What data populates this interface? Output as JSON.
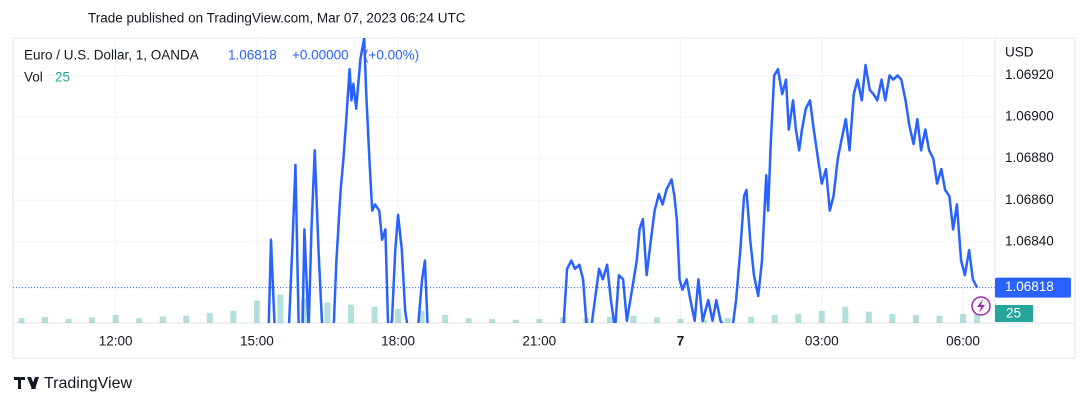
{
  "header": {
    "published": "Trade published on TradingView.com, Mar 07, 2023 06:24 UTC"
  },
  "footer": {
    "brand": "TradingView"
  },
  "chart_data": {
    "type": "line",
    "title": "Euro / U.S. Dollar, 1, OANDA",
    "change": "+0.00000",
    "change_percent": "(+0.00%)",
    "volume_label": "Vol",
    "y_axis_label": "USD",
    "grid": true,
    "xlim": [
      9.82,
      30.68
    ],
    "xticks": [
      {
        "value": 12,
        "label": "12:00"
      },
      {
        "value": 15,
        "label": "15:00"
      },
      {
        "value": 18,
        "label": "18:00"
      },
      {
        "value": 21,
        "label": "21:00"
      },
      {
        "value": 24,
        "label": "7"
      },
      {
        "value": 27,
        "label": "03:00"
      },
      {
        "value": 30,
        "label": "06:00"
      }
    ],
    "ylim": [
      1.06801,
      1.06938
    ],
    "yticks": [
      {
        "value": 1.0684,
        "label": "1.06840"
      },
      {
        "value": 1.0686,
        "label": "1.06860"
      },
      {
        "value": 1.0688,
        "label": "1.06880"
      },
      {
        "value": 1.069,
        "label": "1.06900"
      },
      {
        "value": 1.0692,
        "label": "1.06920"
      }
    ],
    "y2lim": [
      0,
      700
    ],
    "series": [
      {
        "name": "EURUSD",
        "color": "#2962ff",
        "x": [
          15.25,
          15.3,
          15.38,
          15.51,
          15.68,
          15.76,
          15.82,
          15.89,
          15.97,
          16.01,
          16.1,
          16.16,
          16.23,
          16.31,
          16.39,
          16.52,
          16.63,
          16.69,
          16.78,
          16.84,
          16.9,
          16.97,
          17.01,
          17.05,
          17.11,
          17.2,
          17.28,
          17.32,
          17.39,
          17.45,
          17.51,
          17.6,
          17.66,
          17.73,
          17.79,
          17.87,
          17.94,
          18.0,
          18.08,
          18.15,
          18.21,
          18.32,
          18.42,
          18.51,
          18.57,
          18.63,
          18.74,
          20.11,
          21.38,
          21.51,
          21.59,
          21.68,
          21.76,
          21.85,
          21.93,
          22.01,
          22.1,
          22.18,
          22.27,
          22.35,
          22.44,
          22.52,
          22.61,
          22.69,
          22.78,
          22.86,
          22.97,
          23.07,
          23.13,
          23.2,
          23.28,
          23.37,
          23.45,
          23.54,
          23.62,
          23.7,
          23.81,
          23.87,
          23.92,
          23.98,
          24.04,
          24.13,
          24.21,
          24.3,
          24.38,
          24.47,
          24.59,
          24.68,
          24.76,
          24.85,
          24.97,
          25.1,
          25.18,
          25.27,
          25.35,
          25.4,
          25.48,
          25.56,
          25.65,
          25.73,
          25.82,
          25.86,
          25.92,
          25.99,
          26.07,
          26.16,
          26.24,
          26.3,
          26.39,
          26.45,
          26.52,
          26.58,
          26.66,
          26.75,
          26.83,
          26.92,
          27.0,
          27.09,
          27.17,
          27.25,
          27.34,
          27.42,
          27.51,
          27.59,
          27.68,
          27.76,
          27.85,
          27.93,
          28.02,
          28.1,
          28.18,
          28.27,
          28.35,
          28.44,
          28.52,
          28.61,
          28.69,
          28.78,
          28.86,
          28.95,
          29.03,
          29.11,
          29.2,
          29.28,
          29.37,
          29.45,
          29.54,
          29.62,
          29.71,
          29.79,
          29.87,
          29.96,
          30.04,
          30.13,
          30.21,
          30.3
        ],
        "values": [
          1.06798,
          1.06841,
          1.06798,
          1.06798,
          1.06798,
          1.06841,
          1.06877,
          1.06798,
          1.06798,
          1.06846,
          1.06798,
          1.06846,
          1.06884,
          1.06836,
          1.06798,
          1.06798,
          1.06798,
          1.06831,
          1.06865,
          1.0688,
          1.06899,
          1.06923,
          1.06908,
          1.06916,
          1.06904,
          1.06928,
          1.06938,
          1.06913,
          1.0688,
          1.06855,
          1.06858,
          1.06855,
          1.06841,
          1.06846,
          1.06798,
          1.06802,
          1.06836,
          1.06853,
          1.06836,
          1.06807,
          1.06798,
          1.06798,
          1.06798,
          1.06822,
          1.06831,
          1.06798,
          1.06798,
          1.06793,
          1.06795,
          1.06798,
          1.06827,
          1.06831,
          1.06827,
          1.06829,
          1.06822,
          1.06798,
          1.06798,
          1.06812,
          1.06827,
          1.06822,
          1.06829,
          1.06812,
          1.06798,
          1.06824,
          1.06822,
          1.06802,
          1.06817,
          1.06831,
          1.06846,
          1.06851,
          1.06824,
          1.06841,
          1.06855,
          1.06863,
          1.06858,
          1.06865,
          1.0687,
          1.06862,
          1.06851,
          1.06822,
          1.06817,
          1.06822,
          1.06812,
          1.06802,
          1.06822,
          1.06802,
          1.06812,
          1.06802,
          1.06812,
          1.06802,
          1.06798,
          1.06798,
          1.06812,
          1.06836,
          1.06862,
          1.06865,
          1.06841,
          1.06824,
          1.06814,
          1.06831,
          1.06872,
          1.06855,
          1.06889,
          1.0692,
          1.06923,
          1.06911,
          1.06918,
          1.06894,
          1.06908,
          1.06894,
          1.06884,
          1.06894,
          1.06904,
          1.06908,
          1.06894,
          1.0688,
          1.06868,
          1.06875,
          1.06855,
          1.06862,
          1.0688,
          1.06889,
          1.06899,
          1.06884,
          1.06911,
          1.06918,
          1.06908,
          1.06925,
          1.06913,
          1.06911,
          1.06908,
          1.06918,
          1.06908,
          1.0692,
          1.06918,
          1.0692,
          1.06918,
          1.06908,
          1.06896,
          1.06887,
          1.06899,
          1.06884,
          1.06894,
          1.06884,
          1.0688,
          1.06868,
          1.06875,
          1.06865,
          1.06862,
          1.06846,
          1.06858,
          1.06831,
          1.06824,
          1.06836,
          1.06822,
          1.06818
        ]
      },
      {
        "name": "Vol",
        "color": "#26a69a",
        "axis": "y2",
        "x": [
          10,
          10.5,
          11,
          11.5,
          12,
          12.5,
          13,
          13.5,
          14,
          14.5,
          15,
          15.5,
          16,
          16.5,
          17,
          17.5,
          18,
          18.5,
          19,
          19.5,
          20,
          20.5,
          21,
          21.5,
          22,
          22.5,
          23,
          23.5,
          24,
          24.5,
          25,
          25.5,
          26,
          26.5,
          27,
          27.5,
          28,
          28.5,
          29,
          29.5,
          30,
          30.3
        ],
        "values": [
          12,
          15,
          10,
          14,
          20,
          12,
          16,
          18,
          25,
          30,
          55,
          70,
          60,
          50,
          45,
          40,
          35,
          30,
          20,
          12,
          10,
          8,
          10,
          14,
          12,
          15,
          18,
          14,
          10,
          8,
          12,
          15,
          20,
          22,
          30,
          40,
          28,
          22,
          20,
          18,
          22,
          25
        ]
      }
    ]
  }
}
